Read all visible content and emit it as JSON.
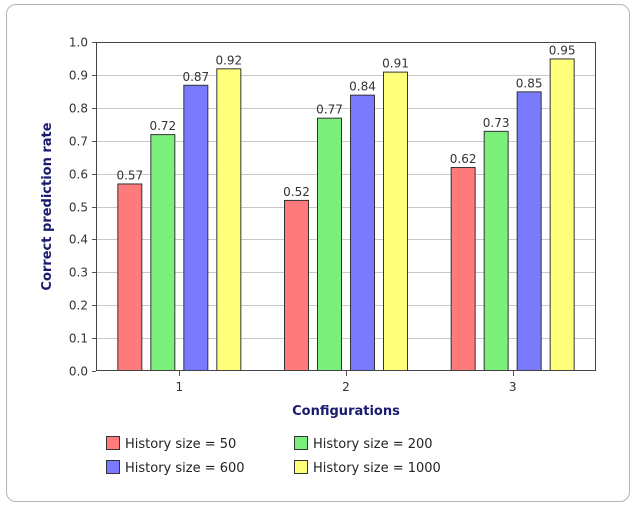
{
  "chart_data": {
    "type": "bar",
    "xlabel": "Configurations",
    "ylabel": "Correct prediction rate",
    "categories": [
      "1",
      "2",
      "3"
    ],
    "ylim": [
      0.0,
      1.0
    ],
    "yticks": [
      "0.0",
      "0.1",
      "0.2",
      "0.3",
      "0.4",
      "0.5",
      "0.6",
      "0.7",
      "0.8",
      "0.9",
      "1.0"
    ],
    "grid": true,
    "legend_position": "bottom",
    "series": [
      {
        "name": "History size = 50",
        "color": "#ff7a7a",
        "values": [
          0.57,
          0.52,
          0.62
        ],
        "labels": [
          "0.57",
          "0.52",
          "0.62"
        ]
      },
      {
        "name": "History size = 200",
        "color": "#7af07a",
        "values": [
          0.72,
          0.77,
          0.73
        ],
        "labels": [
          "0.72",
          "0.77",
          "0.73"
        ]
      },
      {
        "name": "History size = 600",
        "color": "#7a7aff",
        "values": [
          0.87,
          0.84,
          0.85
        ],
        "labels": [
          "0.87",
          "0.84",
          "0.85"
        ]
      },
      {
        "name": "History size = 1000",
        "color": "#ffff7a",
        "values": [
          0.92,
          0.91,
          0.95
        ],
        "labels": [
          "0.92",
          "0.91",
          "0.95"
        ]
      }
    ]
  }
}
